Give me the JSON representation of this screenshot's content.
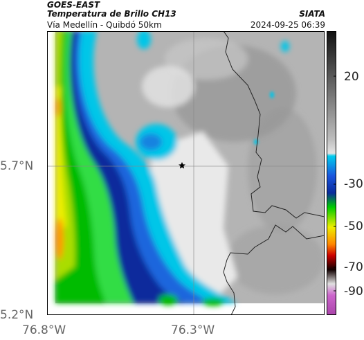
{
  "header": {
    "line1": "GOES-EAST",
    "line2": "Temperatura de Brillo CH13",
    "line3": "Vía Medellín - Quibdó 50km",
    "source": "SIATA",
    "datetime": "2024-09-25 06:39"
  },
  "map": {
    "lat_ticks": [
      "5.7°N",
      "5.2°N"
    ],
    "lon_ticks": [
      "76.8°W",
      "76.3°W"
    ],
    "marker_icon": "star-icon"
  },
  "colorbar": {
    "ticks": [
      "20",
      "-30",
      "-50",
      "-70",
      "-90"
    ],
    "stops": [
      "#111111",
      "#888888",
      "#dddddd",
      "#00ccee",
      "#0044cc",
      "#00cc00",
      "#eeee00",
      "#ff8800",
      "#cc0000",
      "#110000",
      "#dddddd",
      "#cc55cc"
    ]
  }
}
